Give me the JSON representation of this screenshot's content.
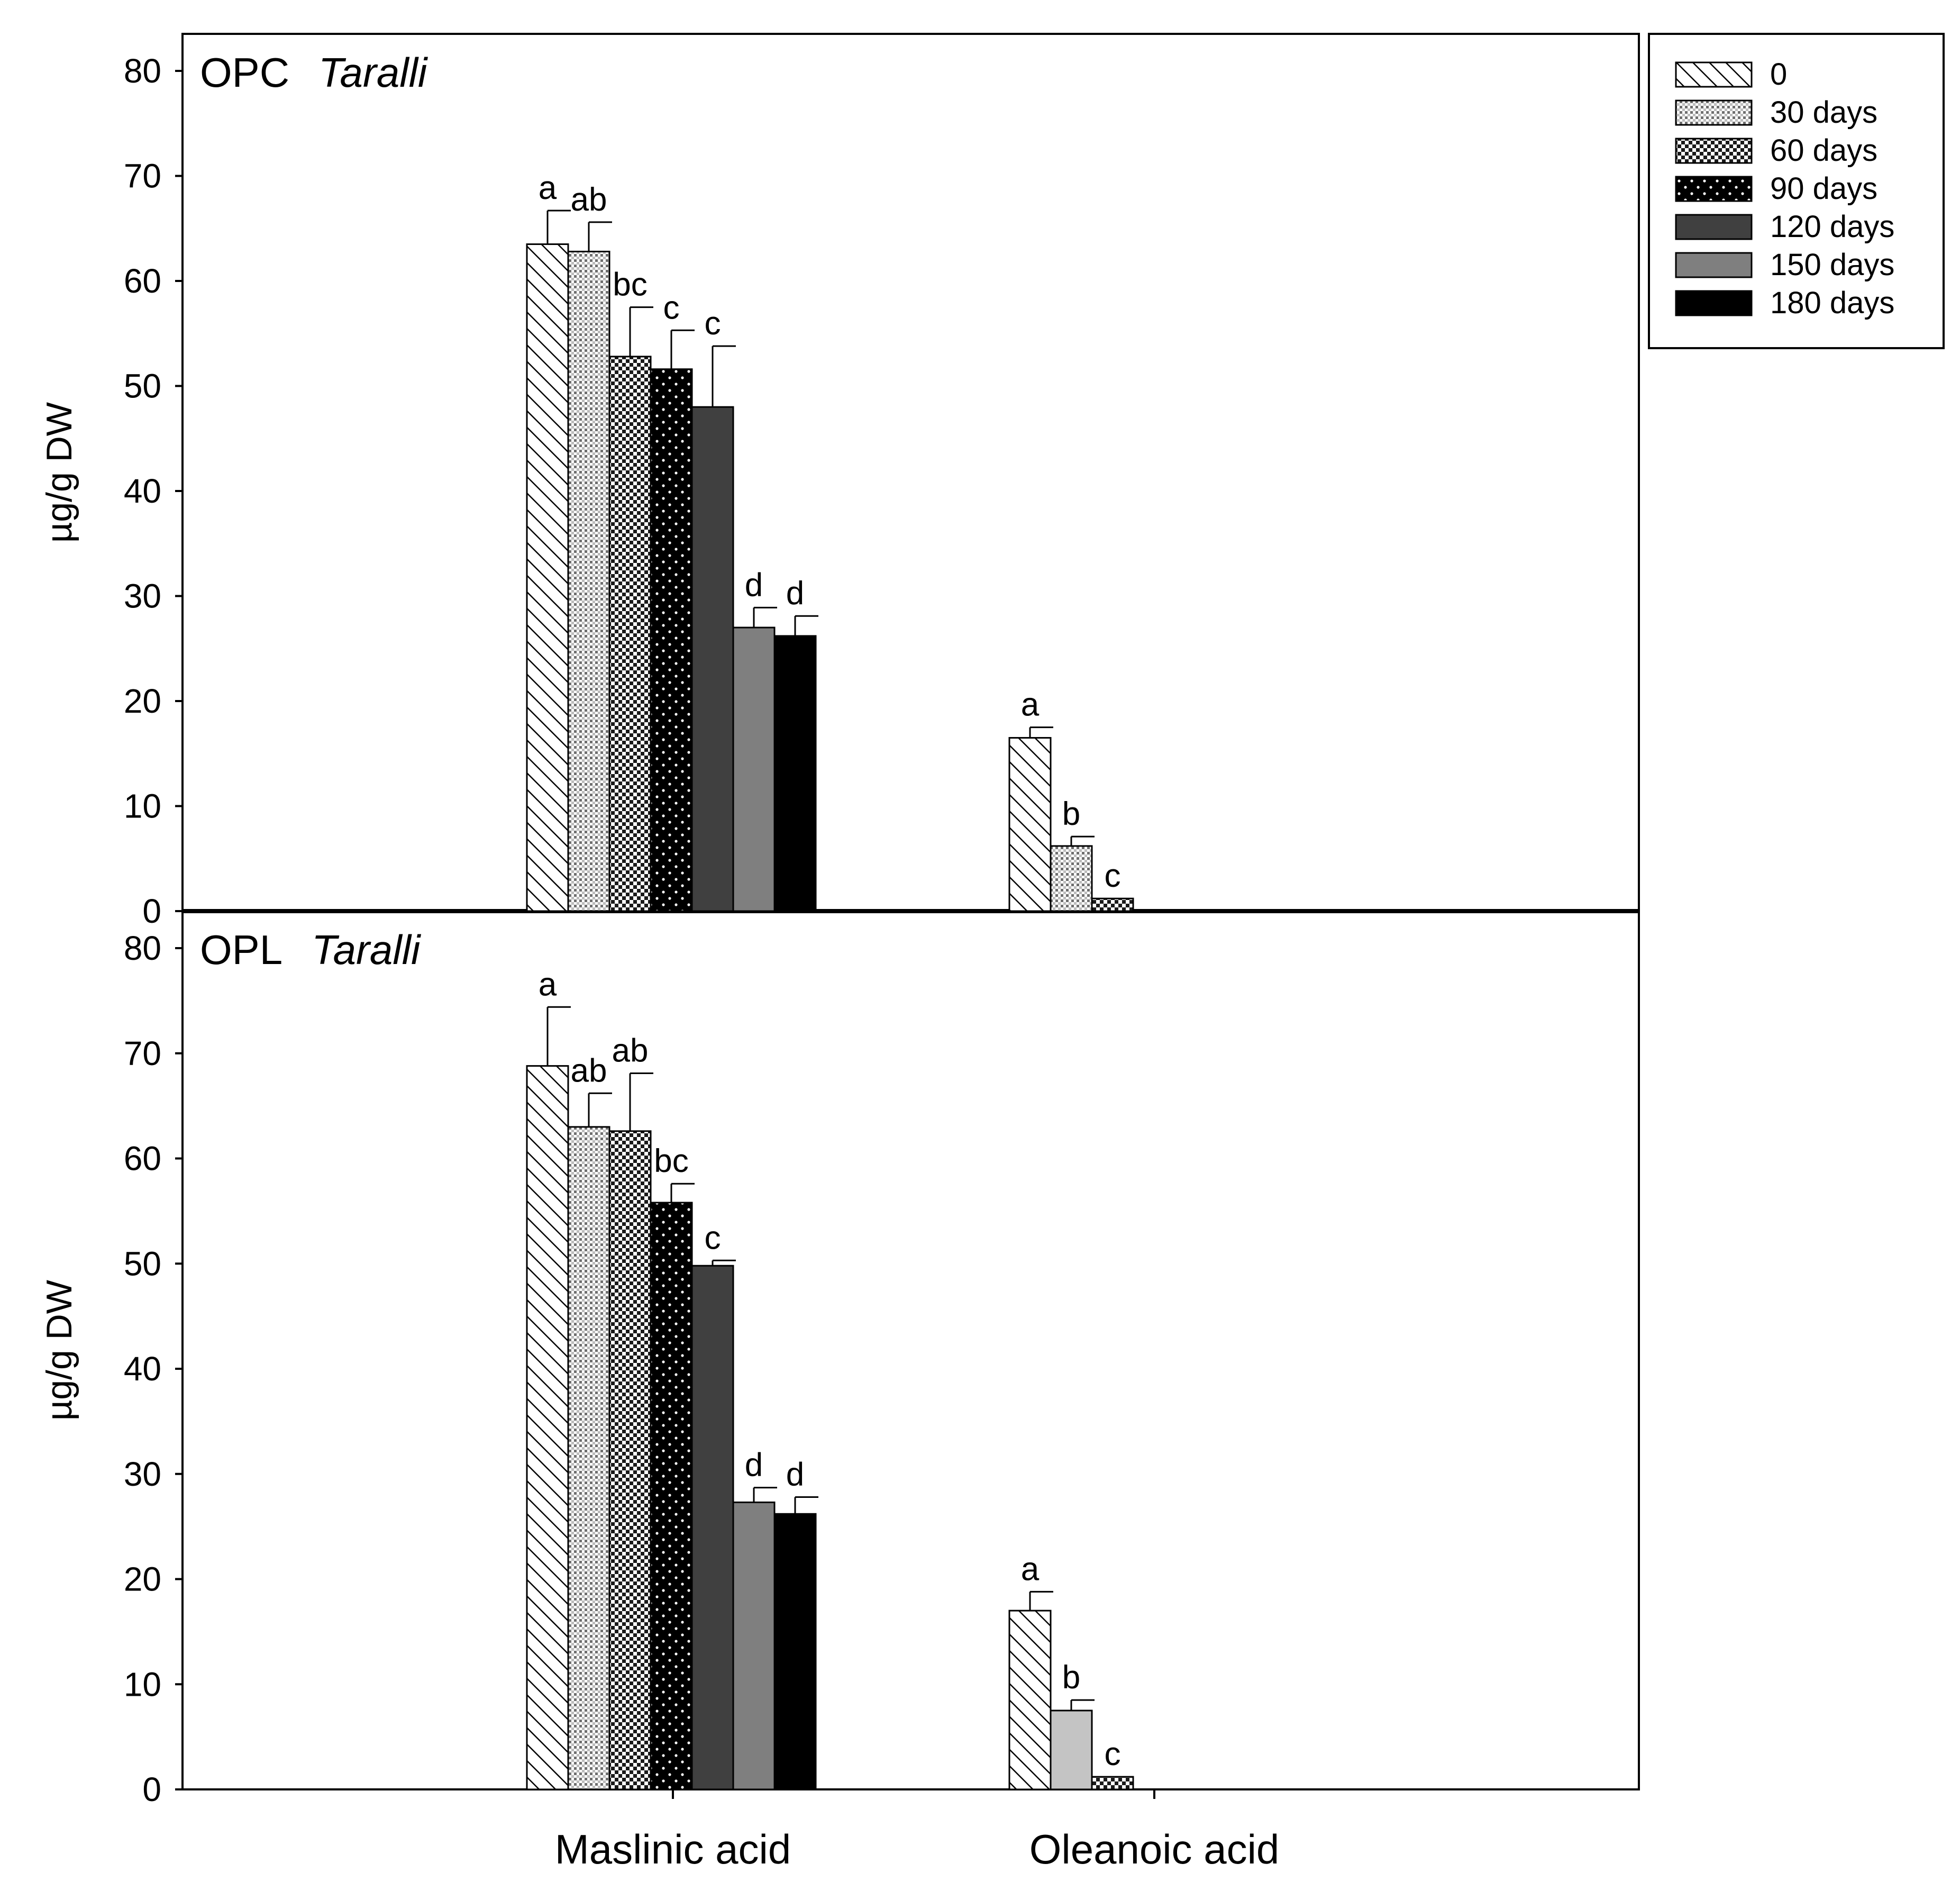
{
  "chart_data": {
    "type": "bar",
    "categories": [
      "Maslinic acid",
      "Oleanoic acid"
    ],
    "ylabel": "µg/g DW",
    "ylim": [
      0,
      80
    ],
    "yticks": [
      "0",
      "10",
      "20",
      "30",
      "40",
      "50",
      "60",
      "70",
      "80"
    ],
    "legend": {
      "position": "top-right, outside plot",
      "entries": [
        {
          "label": "0",
          "pattern": "diagonal-hatch"
        },
        {
          "label": "30 days",
          "pattern": "fine-crosshatch"
        },
        {
          "label": "60 days",
          "pattern": "checker"
        },
        {
          "label": "90 days",
          "pattern": "black-dots"
        },
        {
          "label": "120 days",
          "pattern": "dark-gray"
        },
        {
          "label": "150 days",
          "pattern": "gray"
        },
        {
          "label": "180 days",
          "pattern": "black"
        }
      ]
    },
    "panels": [
      {
        "title": "OPC",
        "title_italic": "Taralli",
        "series": [
          {
            "name": "0",
            "values": [
              63.5,
              16.5
            ],
            "errors": [
              3.2,
              1.0
            ],
            "labels": [
              "a",
              "a"
            ]
          },
          {
            "name": "30 days",
            "values": [
              62.8,
              6.2
            ],
            "errors": [
              2.8,
              0.9
            ],
            "labels": [
              "ab",
              "b"
            ]
          },
          {
            "name": "60 days",
            "values": [
              52.8,
              1.2
            ],
            "errors": [
              4.7,
              0.0
            ],
            "labels": [
              "bc",
              "c"
            ]
          },
          {
            "name": "90 days",
            "values": [
              51.6,
              null
            ],
            "errors": [
              3.7,
              null
            ],
            "labels": [
              "c",
              ""
            ]
          },
          {
            "name": "120 days",
            "values": [
              48.0,
              null
            ],
            "errors": [
              5.8,
              null
            ],
            "labels": [
              "c",
              ""
            ]
          },
          {
            "name": "150 days",
            "values": [
              27.0,
              null
            ],
            "errors": [
              1.9,
              null
            ],
            "labels": [
              "d",
              ""
            ]
          },
          {
            "name": "180 days",
            "values": [
              26.2,
              null
            ],
            "errors": [
              1.9,
              null
            ],
            "labels": [
              "d",
              ""
            ]
          }
        ]
      },
      {
        "title": "OPL",
        "title_italic": "Taralli",
        "series": [
          {
            "name": "0",
            "values": [
              68.8,
              17.0
            ],
            "errors": [
              5.6,
              1.8
            ],
            "labels": [
              "a",
              "a"
            ]
          },
          {
            "name": "30 days",
            "values": [
              63.0,
              7.5
            ],
            "errors": [
              3.2,
              1.0
            ],
            "labels": [
              "ab",
              "b"
            ],
            "fill_override": [
              null,
              "light-gray"
            ]
          },
          {
            "name": "60 days",
            "values": [
              62.6,
              1.2
            ],
            "errors": [
              5.5,
              0.0
            ],
            "labels": [
              "ab",
              "c"
            ]
          },
          {
            "name": "90 days",
            "values": [
              55.8,
              null
            ],
            "errors": [
              1.8,
              null
            ],
            "labels": [
              "bc",
              ""
            ]
          },
          {
            "name": "120 days",
            "values": [
              49.8,
              null
            ],
            "errors": [
              0.5,
              null
            ],
            "labels": [
              "c",
              ""
            ]
          },
          {
            "name": "150 days",
            "values": [
              27.3,
              null
            ],
            "errors": [
              1.4,
              null
            ],
            "labels": [
              "d",
              ""
            ]
          },
          {
            "name": "180 days",
            "values": [
              26.2,
              null
            ],
            "errors": [
              1.6,
              null
            ],
            "labels": [
              "d",
              ""
            ]
          }
        ]
      }
    ]
  }
}
